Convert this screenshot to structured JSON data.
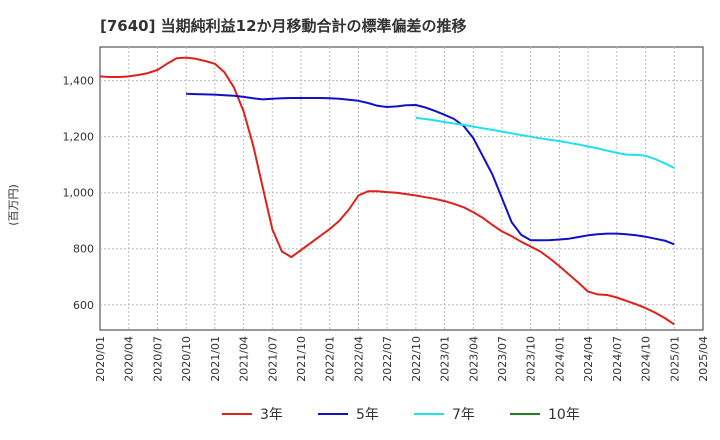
{
  "chart_data": {
    "type": "line",
    "title": "[7640]  当期純利益12か月移動合計の標準偏差の推移",
    "xlabel": "",
    "ylabel": "(百万円)",
    "ylim": [
      510,
      1520
    ],
    "yticks": [
      600,
      800,
      1000,
      1200,
      1400
    ],
    "ytick_labels": [
      "600",
      "800",
      "1,000",
      "1,200",
      "1,400"
    ],
    "xticks": [
      "2020/01",
      "2020/04",
      "2020/07",
      "2020/10",
      "2021/01",
      "2021/04",
      "2021/07",
      "2021/10",
      "2022/01",
      "2022/04",
      "2022/07",
      "2022/10",
      "2023/01",
      "2023/04",
      "2023/07",
      "2023/10",
      "2024/01",
      "2024/04",
      "2024/07",
      "2024/10",
      "2025/01",
      "2025/04"
    ],
    "xmin": "2020/01",
    "xmax": "2025/04",
    "grid": true,
    "legend_position": "bottom",
    "series": [
      {
        "name": "3年",
        "color": "#e0201b",
        "points": [
          [
            "2020/01",
            1415
          ],
          [
            "2020/02",
            1413
          ],
          [
            "2020/03",
            1413
          ],
          [
            "2020/04",
            1415
          ],
          [
            "2020/05",
            1420
          ],
          [
            "2020/06",
            1427
          ],
          [
            "2020/07",
            1438
          ],
          [
            "2020/08",
            1460
          ],
          [
            "2020/09",
            1480
          ],
          [
            "2020/10",
            1482
          ],
          [
            "2020/11",
            1478
          ],
          [
            "2020/12",
            1470
          ],
          [
            "2021/01",
            1460
          ],
          [
            "2021/02",
            1430
          ],
          [
            "2021/03",
            1375
          ],
          [
            "2021/04",
            1290
          ],
          [
            "2021/05",
            1170
          ],
          [
            "2021/06",
            1020
          ],
          [
            "2021/07",
            870
          ],
          [
            "2021/08",
            790
          ],
          [
            "2021/09",
            770
          ],
          [
            "2021/10",
            795
          ],
          [
            "2021/11",
            820
          ],
          [
            "2021/12",
            845
          ],
          [
            "2022/01",
            870
          ],
          [
            "2022/02",
            900
          ],
          [
            "2022/03",
            940
          ],
          [
            "2022/04",
            990
          ],
          [
            "2022/05",
            1005
          ],
          [
            "2022/06",
            1005
          ],
          [
            "2022/07",
            1002
          ],
          [
            "2022/08",
            1000
          ],
          [
            "2022/09",
            995
          ],
          [
            "2022/10",
            990
          ],
          [
            "2022/11",
            984
          ],
          [
            "2022/12",
            978
          ],
          [
            "2023/01",
            970
          ],
          [
            "2023/02",
            960
          ],
          [
            "2023/03",
            948
          ],
          [
            "2023/04",
            930
          ],
          [
            "2023/05",
            910
          ],
          [
            "2023/06",
            885
          ],
          [
            "2023/07",
            862
          ],
          [
            "2023/08",
            845
          ],
          [
            "2023/09",
            825
          ],
          [
            "2023/10",
            808
          ],
          [
            "2023/11",
            790
          ],
          [
            "2023/12",
            765
          ],
          [
            "2024/01",
            738
          ],
          [
            "2024/02",
            708
          ],
          [
            "2024/03",
            678
          ],
          [
            "2024/04",
            647
          ],
          [
            "2024/05",
            637
          ],
          [
            "2024/06",
            635
          ],
          [
            "2024/07",
            626
          ],
          [
            "2024/08",
            614
          ],
          [
            "2024/09",
            602
          ],
          [
            "2024/10",
            588
          ],
          [
            "2024/11",
            572
          ],
          [
            "2024/12",
            553
          ],
          [
            "2025/01",
            530
          ]
        ]
      },
      {
        "name": "5年",
        "color": "#1010c8",
        "points": [
          [
            "2020/10",
            1353
          ],
          [
            "2020/11",
            1352
          ],
          [
            "2020/12",
            1351
          ],
          [
            "2021/01",
            1350
          ],
          [
            "2021/02",
            1348
          ],
          [
            "2021/03",
            1346
          ],
          [
            "2021/04",
            1342
          ],
          [
            "2021/05",
            1337
          ],
          [
            "2021/06",
            1333
          ],
          [
            "2021/07",
            1335
          ],
          [
            "2021/08",
            1337
          ],
          [
            "2021/09",
            1338
          ],
          [
            "2021/10",
            1338
          ],
          [
            "2021/11",
            1338
          ],
          [
            "2021/12",
            1338
          ],
          [
            "2022/01",
            1337
          ],
          [
            "2022/02",
            1335
          ],
          [
            "2022/03",
            1332
          ],
          [
            "2022/04",
            1328
          ],
          [
            "2022/05",
            1320
          ],
          [
            "2022/06",
            1310
          ],
          [
            "2022/07",
            1306
          ],
          [
            "2022/08",
            1308
          ],
          [
            "2022/09",
            1312
          ],
          [
            "2022/10",
            1313
          ],
          [
            "2022/11",
            1304
          ],
          [
            "2022/12",
            1292
          ],
          [
            "2023/01",
            1278
          ],
          [
            "2023/02",
            1263
          ],
          [
            "2023/03",
            1238
          ],
          [
            "2023/04",
            1195
          ],
          [
            "2023/05",
            1130
          ],
          [
            "2023/06",
            1065
          ],
          [
            "2023/07",
            980
          ],
          [
            "2023/08",
            895
          ],
          [
            "2023/09",
            850
          ],
          [
            "2023/10",
            830
          ],
          [
            "2023/11",
            830
          ],
          [
            "2023/12",
            831
          ],
          [
            "2024/01",
            833
          ],
          [
            "2024/02",
            836
          ],
          [
            "2024/03",
            842
          ],
          [
            "2024/04",
            848
          ],
          [
            "2024/05",
            852
          ],
          [
            "2024/06",
            854
          ],
          [
            "2024/07",
            854
          ],
          [
            "2024/08",
            852
          ],
          [
            "2024/09",
            848
          ],
          [
            "2024/10",
            843
          ],
          [
            "2024/11",
            836
          ],
          [
            "2024/12",
            829
          ],
          [
            "2025/01",
            816
          ]
        ]
      },
      {
        "name": "7年",
        "color": "#20e0f0",
        "points": [
          [
            "2022/10",
            1267
          ],
          [
            "2022/11",
            1263
          ],
          [
            "2022/12",
            1258
          ],
          [
            "2023/01",
            1252
          ],
          [
            "2023/02",
            1247
          ],
          [
            "2023/03",
            1242
          ],
          [
            "2023/04",
            1236
          ],
          [
            "2023/05",
            1230
          ],
          [
            "2023/06",
            1224
          ],
          [
            "2023/07",
            1218
          ],
          [
            "2023/08",
            1212
          ],
          [
            "2023/09",
            1206
          ],
          [
            "2023/10",
            1200
          ],
          [
            "2023/11",
            1194
          ],
          [
            "2023/12",
            1189
          ],
          [
            "2024/01",
            1184
          ],
          [
            "2024/02",
            1178
          ],
          [
            "2024/03",
            1172
          ],
          [
            "2024/04",
            1165
          ],
          [
            "2024/05",
            1158
          ],
          [
            "2024/06",
            1150
          ],
          [
            "2024/07",
            1142
          ],
          [
            "2024/08",
            1136
          ],
          [
            "2024/09",
            1135
          ],
          [
            "2024/10",
            1132
          ],
          [
            "2024/11",
            1120
          ],
          [
            "2024/12",
            1105
          ],
          [
            "2025/01",
            1088
          ]
        ]
      },
      {
        "name": "10年",
        "color": "#208020",
        "points": []
      }
    ]
  }
}
